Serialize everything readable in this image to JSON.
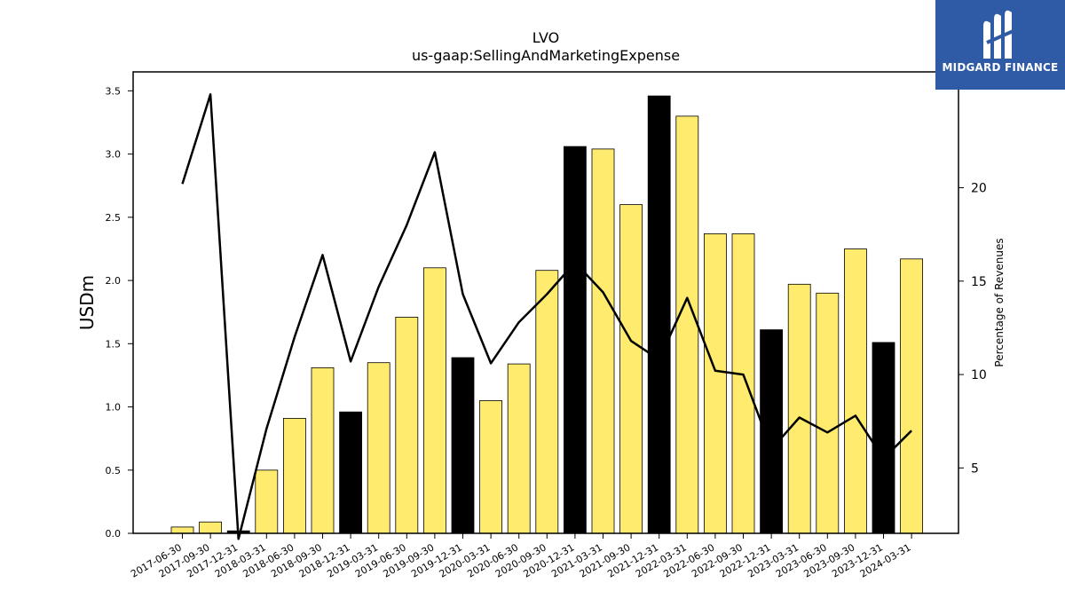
{
  "chart_data": {
    "type": "bar",
    "title": "LVO",
    "subtitle": "us-gaap:SellingAndMarketingExpense",
    "ylabel": "USDm",
    "y2label": "Percentage of Revenues",
    "ylim": [
      0,
      3.65
    ],
    "y2lim": [
      1.5,
      26.2
    ],
    "yticks": [
      "0.0",
      "0.5",
      "1.0",
      "1.5",
      "2.0",
      "2.5",
      "3.0",
      "3.5"
    ],
    "y2ticks": [
      "5",
      "10",
      "15",
      "20"
    ],
    "categories": [
      "2017-06-30",
      "2017-09-30",
      "2017-12-31",
      "2018-03-31",
      "2018-06-30",
      "2018-09-30",
      "2018-12-31",
      "2019-03-31",
      "2019-06-30",
      "2019-09-30",
      "2019-12-31",
      "2020-03-31",
      "2020-06-30",
      "2020-09-30",
      "2020-12-31",
      "2021-03-31",
      "2021-09-30",
      "2021-12-31",
      "2022-03-31",
      "2022-06-30",
      "2022-09-30",
      "2022-12-31",
      "2023-03-31",
      "2023-06-30",
      "2023-09-30",
      "2023-12-31",
      "2024-03-31"
    ],
    "series": [
      {
        "kind": "bar",
        "values": [
          0.05,
          0.09,
          0.02,
          0.5,
          0.91,
          1.31,
          0.96,
          1.35,
          1.71,
          2.1,
          1.39,
          1.05,
          1.34,
          2.08,
          3.06,
          3.04,
          2.6,
          3.46,
          3.3,
          2.37,
          2.37,
          1.61,
          1.97,
          1.9,
          2.25,
          1.51,
          2.17
        ],
        "highlight": [
          false,
          false,
          true,
          false,
          false,
          false,
          true,
          false,
          false,
          false,
          true,
          false,
          false,
          false,
          true,
          false,
          false,
          true,
          false,
          false,
          false,
          true,
          false,
          false,
          false,
          true,
          false
        ]
      },
      {
        "kind": "line",
        "axis": "right",
        "values": [
          20.2,
          25.0,
          1.2,
          7.1,
          12.0,
          16.4,
          10.7,
          14.7,
          18.0,
          21.9,
          14.3,
          10.6,
          12.8,
          14.3,
          16.0,
          14.4,
          11.8,
          10.8,
          14.1,
          10.2,
          10.0,
          6.0,
          7.7,
          6.9,
          7.8,
          5.5,
          7.0
        ]
      }
    ],
    "colors": {
      "bar": "#ffec6e",
      "bar_highlight": "#000000",
      "line": "#000000"
    },
    "grid": false,
    "legend": "none"
  },
  "logo": {
    "text": "MIDGARD FINANCE",
    "color": "#2f5aa6"
  }
}
